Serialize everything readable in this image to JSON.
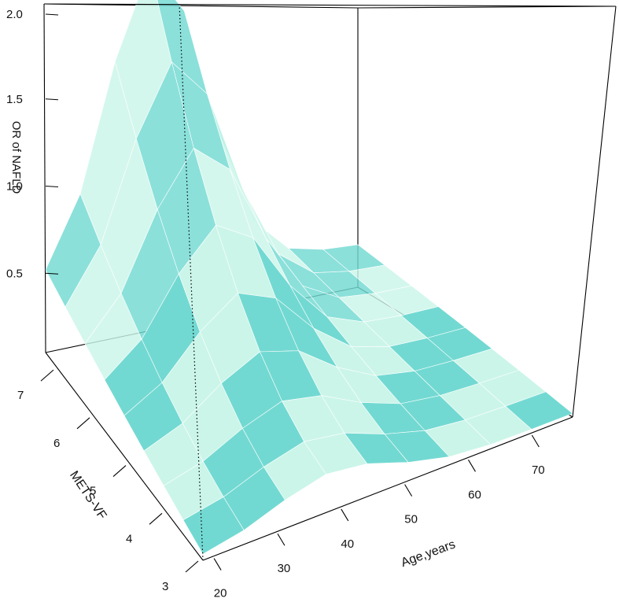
{
  "chart_data": {
    "type": "surface3d",
    "title": "",
    "xlabel": "Age,years",
    "ylabel": "METS-VF",
    "zlabel": "OR of NAFLD",
    "x_ticks": [
      "20",
      "30",
      "40",
      "50",
      "60",
      "70"
    ],
    "y_ticks": [
      "3",
      "4",
      "5",
      "6",
      "7"
    ],
    "z_ticks": [
      "0.5",
      "1.0",
      "1.5",
      "2.0"
    ],
    "zlim": [
      0.0,
      2.0
    ],
    "palette": [
      "#72D9D2",
      "#FF8FAE",
      "#CBF5E9",
      "#FFD3E1"
    ],
    "grid_note": "Surface grid of OR values; rows = METS-VF from 3 to ~7.6, columns = Age from ~20 to ~75"
  }
}
